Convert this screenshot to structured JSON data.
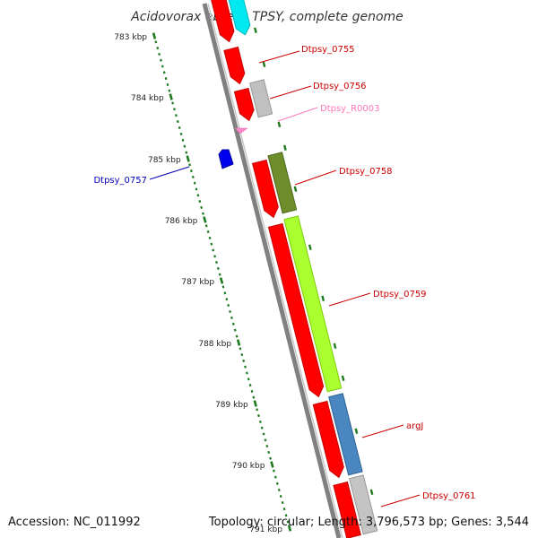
{
  "title": "Acidovorax ebreus TPSY, complete genome",
  "footer": {
    "accession": "Accession: NC_011992",
    "summary": "Topology: circular; Length: 3,796,573 bp; Genes: 3,544"
  },
  "scale": {
    "labels": [
      "783 kbp",
      "784 kbp",
      "785 kbp",
      "786 kbp",
      "787 kbp",
      "788 kbp",
      "789 kbp",
      "790 kbp",
      "791 kbp"
    ]
  },
  "colors": {
    "backbone": "#808080",
    "ruler": "#1e7a1e",
    "cds": "#ff0000",
    "trna": "#ff88cc",
    "label_default": "#cc0000",
    "label_pink": "#ff77bb",
    "label_blue": "#0000bb"
  },
  "genes": [
    {
      "label": "",
      "strand": "outer",
      "icon": "cds-arrow-icon"
    },
    {
      "label": "",
      "strand": "cog",
      "icon": "cog-cyan-icon"
    },
    {
      "label": "Dtpsy_0755",
      "strand": "outer",
      "icon": "cds-arrow-icon"
    },
    {
      "label": "Dtpsy_0756",
      "strand": "outer",
      "icon": "cds-arrow-icon"
    },
    {
      "label": "",
      "strand": "cog",
      "icon": "cog-gray-icon"
    },
    {
      "label": "Dtpsy_R0003",
      "strand": "outer",
      "icon": "trna-icon"
    },
    {
      "label": "Dtpsy_0757",
      "strand": "inner",
      "icon": "cds-arrow-icon"
    },
    {
      "label": "Dtpsy_0758",
      "strand": "outer",
      "icon": "cds-arrow-icon"
    },
    {
      "label": "",
      "strand": "cog",
      "icon": "cog-olive-icon"
    },
    {
      "label": "Dtpsy_0759",
      "strand": "outer",
      "icon": "cds-arrow-icon"
    },
    {
      "label": "",
      "strand": "cog",
      "icon": "cog-lime-icon"
    },
    {
      "label": "argJ",
      "strand": "outer",
      "icon": "cds-arrow-icon"
    },
    {
      "label": "",
      "strand": "cog",
      "icon": "cog-steelblue-icon"
    },
    {
      "label": "Dtpsy_0761",
      "strand": "outer",
      "icon": "cds-arrow-icon"
    },
    {
      "label": "",
      "strand": "cog",
      "icon": "cog-gray-icon"
    }
  ]
}
